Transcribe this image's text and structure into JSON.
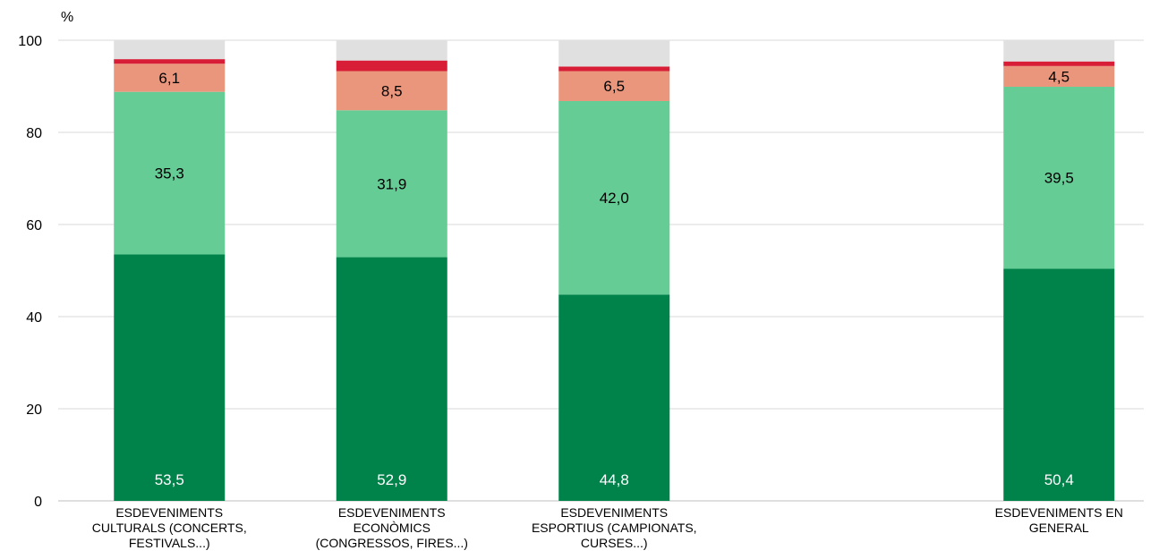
{
  "chart_data": {
    "type": "bar",
    "stacked": true,
    "unit_label": "%",
    "ylim": [
      0,
      100
    ],
    "yticks": [
      "0",
      "20",
      "40",
      "60",
      "80",
      "100"
    ],
    "grid": true,
    "categories": [
      [
        "ESDEVENIMENTS",
        "CULTURALS (CONCERTS,",
        "FESTIVALS...)"
      ],
      [
        "ESDEVENIMENTS",
        "ECONÒMICS",
        "(CONGRESSOS, FIRES...)"
      ],
      [
        "ESDEVENIMENTS",
        "ESPORTIUS (CAMPIONATS,",
        "CURSES...)"
      ],
      [
        "ESDEVENIMENTS EN",
        "GENERAL"
      ]
    ],
    "series": [
      {
        "color": "#00834B",
        "values": [
          53.5,
          52.9,
          44.8,
          50.4
        ],
        "labels": [
          "53,5",
          "52,9",
          "44,8",
          "50,4"
        ],
        "label_color": "#ffffff"
      },
      {
        "color": "#65CC95",
        "values": [
          35.3,
          31.9,
          42.0,
          39.5
        ],
        "labels": [
          "35,3",
          "31,9",
          "42,0",
          "39,5"
        ],
        "label_color": "#000000"
      },
      {
        "color": "#E9967D",
        "values": [
          6.1,
          8.5,
          6.5,
          4.5
        ],
        "labels": [
          "6,1",
          "8,5",
          "6,5",
          "4,5"
        ],
        "label_color": "#000000"
      },
      {
        "color": "#D81E36",
        "values": [
          1.0,
          2.3,
          1.0,
          1.0
        ],
        "labels": [
          "",
          "",
          "",
          ""
        ],
        "label_color": "#000000"
      },
      {
        "color": "#E0E0E0",
        "values": [
          4.1,
          4.4,
          5.7,
          4.6
        ],
        "labels": [
          "",
          "",
          "",
          ""
        ],
        "label_color": "#000000"
      }
    ]
  }
}
